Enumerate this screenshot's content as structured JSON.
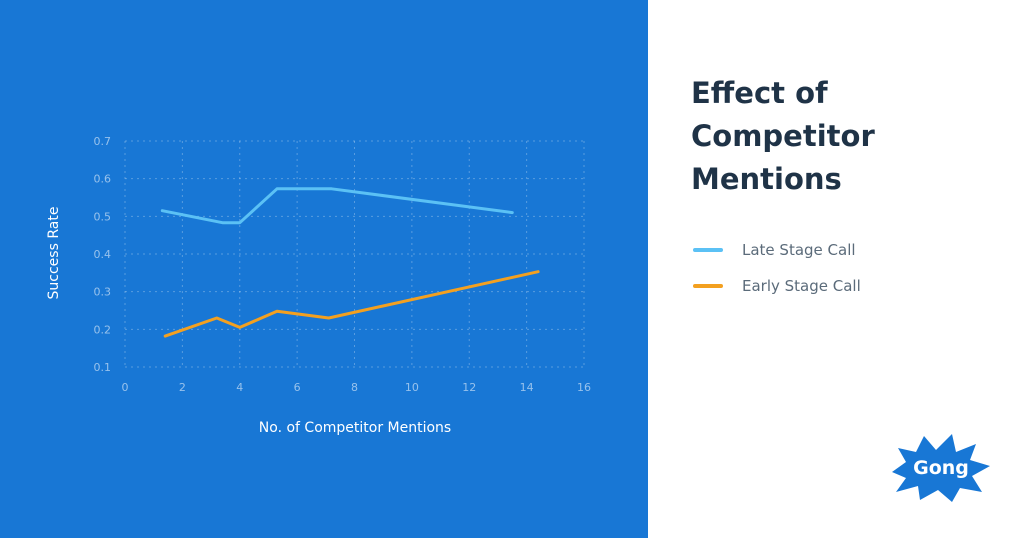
{
  "colors": {
    "panel_bg": "#1877d5",
    "late_stage": "#5bc1f5",
    "early_stage": "#f3a020",
    "title_text": "#1f3347",
    "legend_text": "#5b6b7a",
    "logo_blue": "#1877d5"
  },
  "heading": {
    "line1": "Effect of",
    "line2": "Competitor",
    "line3": "Mentions"
  },
  "legend": {
    "items": [
      {
        "label": "Late Stage Call",
        "color": "#5bc1f5"
      },
      {
        "label": "Early Stage Call",
        "color": "#f3a020"
      }
    ]
  },
  "logo": {
    "text": "Gong",
    "icon": "starburst-badge-icon"
  },
  "chart_data": {
    "type": "line",
    "xlabel": "No. of Competitor Mentions",
    "ylabel": "Success Rate",
    "xlim": [
      0,
      16
    ],
    "ylim": [
      0.1,
      0.7
    ],
    "xticks": [
      0,
      2,
      4,
      6,
      8,
      10,
      12,
      14,
      16
    ],
    "yticks": [
      0.1,
      0.2,
      0.3,
      0.4,
      0.5,
      0.6,
      0.7
    ],
    "grid": true,
    "series": [
      {
        "name": "Late Stage Call",
        "color": "#5bc1f5",
        "x": [
          1.3,
          3.4,
          4.0,
          5.3,
          7.2,
          13.5
        ],
        "y": [
          0.515,
          0.483,
          0.483,
          0.573,
          0.573,
          0.51
        ]
      },
      {
        "name": "Early Stage Call",
        "color": "#f3a020",
        "x": [
          1.4,
          3.2,
          4.0,
          5.3,
          7.1,
          14.4
        ],
        "y": [
          0.182,
          0.23,
          0.205,
          0.248,
          0.23,
          0.353
        ]
      }
    ]
  }
}
